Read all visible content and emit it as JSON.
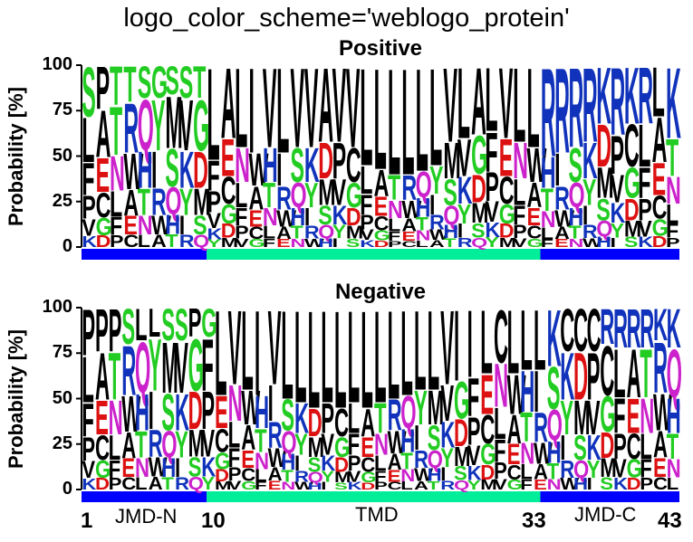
{
  "suptitle": "logo_color_scheme='weblogo_protein'",
  "colors": {
    "jmd": "#0000ff",
    "tmd": "#00ee99",
    "aa_hydrophobic": "#000000",
    "aa_polar_green": "#22cc22",
    "aa_basic": "#1133bb",
    "aa_acidic": "#dd1111",
    "aa_amide": "#cc22cc"
  },
  "chart_data": [
    {
      "type": "sequence-logo",
      "title": "Positive",
      "ylabel": "Probability [%]",
      "ylim": [
        0,
        100
      ],
      "yticks": [
        0,
        25,
        50,
        75,
        100
      ],
      "dominant_letters": [
        "S",
        "P",
        "T",
        "T",
        "S",
        "G",
        "S",
        "S",
        "T",
        "L",
        "A",
        "L",
        "I",
        "V",
        "L",
        "V",
        "V",
        "A",
        "V",
        "V",
        "L",
        "L",
        "L",
        "L",
        "L",
        "L",
        "V",
        "L",
        "A",
        "L",
        "V",
        "L",
        "L",
        "R",
        "R",
        "R",
        "R",
        "K",
        "R",
        "K",
        "R",
        "L",
        "K"
      ],
      "dominant_heights": [
        28,
        24,
        22,
        20,
        18,
        18,
        16,
        18,
        18,
        52,
        40,
        45,
        48,
        45,
        48,
        45,
        45,
        42,
        42,
        45,
        55,
        57,
        60,
        60,
        58,
        55,
        42,
        40,
        38,
        36,
        40,
        42,
        45,
        50,
        48,
        45,
        42,
        32,
        38,
        32,
        32,
        28,
        40
      ],
      "region_bar": [
        {
          "label": "JMD-N",
          "start": 1,
          "end": 9
        },
        {
          "label": "TMD",
          "start": 10,
          "end": 33
        },
        {
          "label": "JMD-C",
          "start": 34,
          "end": 43
        }
      ]
    },
    {
      "type": "sequence-logo",
      "title": "Negative",
      "ylabel": "Probability [%]",
      "ylim": [
        0,
        100
      ],
      "yticks": [
        0,
        25,
        50,
        75,
        100
      ],
      "dominant_letters": [
        "P",
        "P",
        "P",
        "S",
        "L",
        "L",
        "S",
        "S",
        "P",
        "G",
        "L",
        "V",
        "L",
        "I",
        "V",
        "L",
        "L",
        "L",
        "L",
        "L",
        "L",
        "L",
        "L",
        "L",
        "L",
        "L",
        "L",
        "V",
        "I",
        "I",
        "L",
        "C",
        "L",
        "L",
        "L",
        "K",
        "C",
        "C",
        "C",
        "R",
        "R",
        "R",
        "R",
        "K",
        "K"
      ],
      "dominant_heights": [
        26,
        24,
        24,
        20,
        18,
        16,
        18,
        18,
        16,
        16,
        48,
        42,
        45,
        48,
        42,
        50,
        52,
        55,
        52,
        55,
        52,
        55,
        52,
        50,
        48,
        45,
        45,
        42,
        40,
        38,
        36,
        30,
        36,
        34,
        34,
        32,
        24,
        24,
        24,
        20,
        22,
        22,
        22,
        18,
        22
      ],
      "region_bar": [
        {
          "label": "JMD-N",
          "start": 1,
          "end": 9
        },
        {
          "label": "TMD",
          "start": 10,
          "end": 33
        },
        {
          "label": "JMD-C",
          "start": 34,
          "end": 43
        }
      ],
      "xtick_labels": [
        "1",
        "10",
        "33",
        "43"
      ]
    }
  ]
}
